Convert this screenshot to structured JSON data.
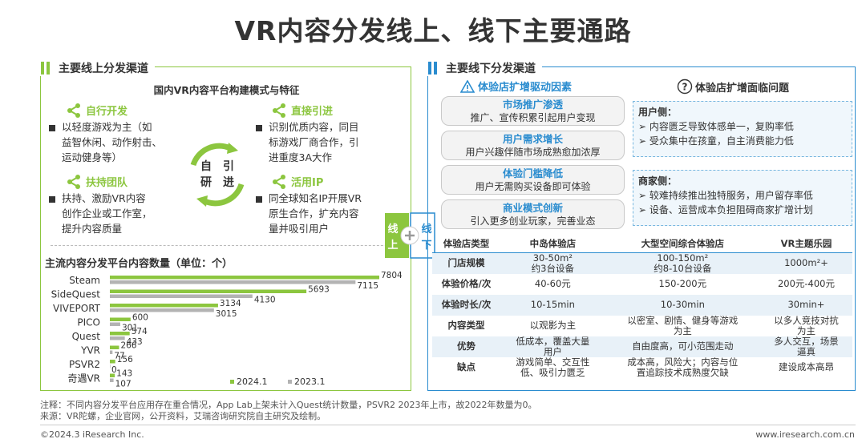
{
  "title": "VR内容分发线上、线下主要通路",
  "left": {
    "section_title": "主要线上分发渠道",
    "subtitle": "国内VR内容平台构建模式与特征",
    "modes": [
      {
        "title": "自行开发",
        "text": [
          "以轻度游戏为主（如",
          "益智休闲、动作射击、",
          "运动健身等）"
        ]
      },
      {
        "title": "直接引进",
        "text": [
          "识别优质内容，同目",
          "标游戏厂商合作，引",
          "进重度3A大作"
        ]
      },
      {
        "title": "扶持团队",
        "text": [
          "扶持、激励VR内容",
          "创作企业或工作室，",
          "提升内容质量"
        ]
      },
      {
        "title": "活用IP",
        "text": [
          "同全球知名IP开展VR",
          "原生合作，扩充内容",
          "量并吸引用户"
        ]
      }
    ],
    "cycle": {
      "c1": "自",
      "c2": "引",
      "c3": "研",
      "c4": "进"
    },
    "chart_title": "主流内容分发平台内容数量（单位：个）"
  },
  "chart_data": {
    "type": "bar",
    "orientation": "horizontal",
    "categories": [
      "Steam",
      "SideQuest",
      "VIVEPORT",
      "PICO",
      "Quest",
      "YVR",
      "PSVR2",
      "奇遇VR"
    ],
    "series": [
      {
        "name": "2024.1",
        "color": "#8cc63f",
        "values": [
          7804,
          5693,
          3134,
          600,
          574,
          266,
          156,
          143
        ]
      },
      {
        "name": "2023.1",
        "color": "#b3b3b3",
        "values": [
          7115,
          4130,
          3015,
          301,
          433,
          77,
          0,
          107
        ]
      }
    ],
    "xlim": [
      0,
      7804
    ]
  },
  "connector": {
    "left": "线上",
    "right": "线下"
  },
  "right": {
    "section_title": "主要线下分发渠道",
    "drivers_title": "体验店扩增驱动因素",
    "problems_title": "体验店扩增面临问题",
    "drivers": [
      {
        "h": "市场推广渗透",
        "d": "推广、宣传积累引起用户变现"
      },
      {
        "h": "用户需求增长",
        "d": "用户兴趣伴随市场成熟愈加浓厚"
      },
      {
        "h": "体验门槛降低",
        "d": "用户无需购买设备即可体验"
      },
      {
        "h": "商业模式创新",
        "d": "引入更多创业玩家，完善业态"
      }
    ],
    "problems": [
      {
        "h": "用户侧：",
        "items": [
          "内容匮乏导致体感单一，复购率低",
          "受众集中在孩童，自主消费能力低"
        ]
      },
      {
        "h": "商家侧：",
        "items": [
          "较难持续推出独特服务，用户留存率低",
          "设备、运营成本负担阻碍商家扩增计划"
        ]
      }
    ],
    "table": {
      "headers": [
        "体验店类型",
        "中岛体验店",
        "大型空间综合体验店",
        "VR主题乐园"
      ],
      "rows": [
        [
          "门店规模",
          "30-50m²\n约3台设备",
          "100-150m²\n约8-10台设备",
          "1000m²+"
        ],
        [
          "体验价格/次",
          "40-60元",
          "150-200元",
          "200元-400元"
        ],
        [
          "体验时长/次",
          "10-15min",
          "10-30min",
          "30min+"
        ],
        [
          "内容类型",
          "以观影为主",
          "以密室、剧情、健身等游戏\n为主",
          "以多人竞技对抗\n为主"
        ],
        [
          "优势",
          "低成本，覆盖大量\n用户",
          "自由度高，可小范围走动",
          "多人交互，场景\n逼真"
        ],
        [
          "缺点",
          "游戏简单、交互性\n低、吸引力匮乏",
          "成本高，风险大；内容与位\n置追踪技术成熟度欠缺",
          "建设成本高昂"
        ]
      ]
    }
  },
  "notes": {
    "line1": "注释：不同内容分发平台应用存在重合情况，App Lab上架未计入Quest统计数量，PSVR2 2023年上市，故2022年数量为0。",
    "line2": "来源：VR陀螺，企业官网，公开资料，艾瑞咨询研究院自主研究及绘制。"
  },
  "footer": {
    "left": "©2024.3 iResearch Inc.",
    "right": "www.iresearch.com.cn"
  }
}
